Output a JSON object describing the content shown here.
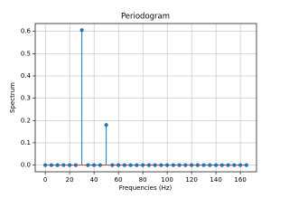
{
  "chart_data": {
    "type": "stem",
    "title": "Periodogram",
    "xlabel": "Frequencies (Hz)",
    "ylabel": "Spectrum",
    "x": [
      0,
      5,
      10,
      15,
      20,
      25,
      30,
      35,
      40,
      45,
      50,
      55,
      60,
      65,
      70,
      75,
      80,
      85,
      90,
      95,
      100,
      105,
      110,
      115,
      120,
      125,
      130,
      135,
      140,
      145,
      150,
      155,
      160,
      165
    ],
    "values": [
      0,
      0,
      0,
      0,
      0,
      0,
      0.605,
      0,
      0,
      0,
      0.18,
      0,
      0,
      0,
      0,
      0,
      0,
      0,
      0,
      0,
      0,
      0,
      0,
      0,
      0,
      0,
      0,
      0,
      0,
      0,
      0,
      0,
      0,
      0
    ],
    "color": "#1f77b4",
    "baseline_color": "#d62728",
    "xlim": [
      -8.25,
      173.25
    ],
    "xticks": [
      0,
      20,
      40,
      60,
      80,
      100,
      120,
      140,
      160
    ],
    "ylim": [
      -0.03,
      0.635
    ],
    "yticks": [
      {
        "value": 0,
        "label": "0.0"
      },
      0.1,
      0.2,
      0.3,
      0.4,
      0.5,
      0.6
    ],
    "grid": true
  }
}
